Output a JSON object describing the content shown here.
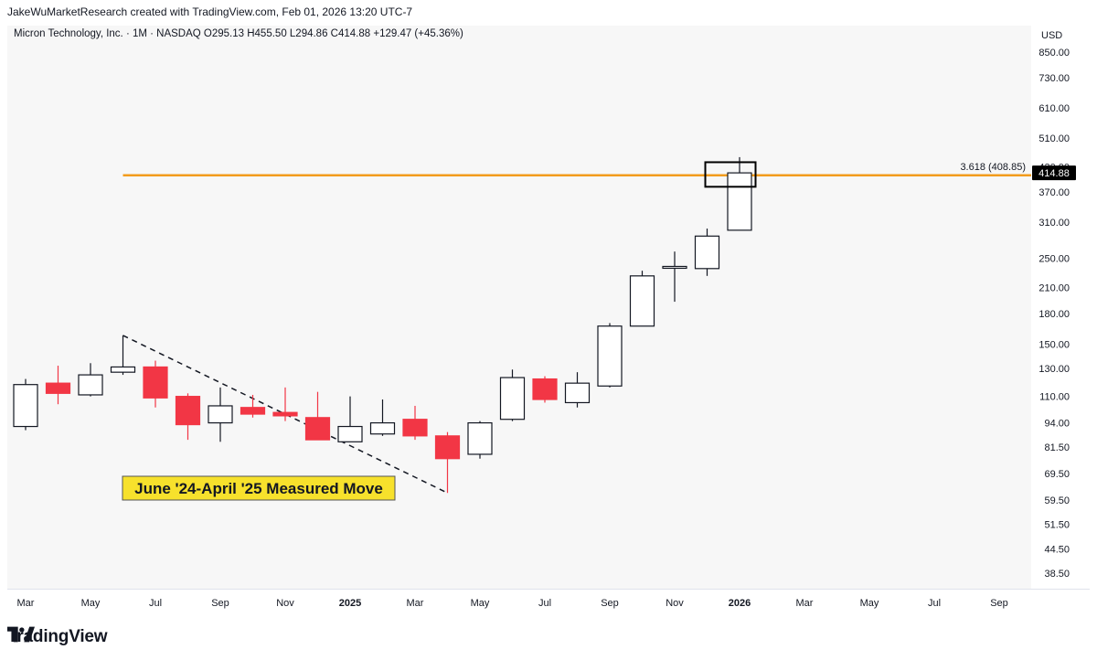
{
  "credit": "JakeWuMarketResearch created with TradingView.com, Feb 01, 2026 13:20 UTC-7",
  "legend": "Micron Technology, Inc. · 1M · NASDAQ  O295.13  H455.50  L294.86  C414.88  +129.47 (+45.36%)",
  "currency": "USD",
  "brand": "TradingView",
  "colors": {
    "up": "#ffffff",
    "down": "#f23645",
    "level": "#f29c1d",
    "text": "#131722",
    "plot_bg": "#f7f7f7",
    "label_bg": "#000000"
  },
  "chart_data": {
    "type": "candlestick",
    "title": "Micron Technology, Inc. · 1M · NASDAQ",
    "y_scale": "log",
    "ylim": [
      34,
      1000
    ],
    "y_ticks": [
      850,
      730,
      610,
      510,
      430,
      370,
      310,
      250,
      210,
      180,
      150,
      130,
      110,
      94,
      81.5,
      69.5,
      59.5,
      51.5,
      44.5,
      38.5
    ],
    "y_tick_labels": [
      "850.00",
      "730.00",
      "610.00",
      "510.00",
      "430.00",
      "370.00",
      "310.00",
      "250.00",
      "210.00",
      "180.00",
      "150.00",
      "130.00",
      "110.00",
      "94.00",
      "81.50",
      "69.50",
      "59.50",
      "51.50",
      "44.50",
      "38.50"
    ],
    "x_ticks": [
      {
        "label": "Mar",
        "month": "2024-03",
        "bold": false
      },
      {
        "label": "May",
        "month": "2024-05",
        "bold": false
      },
      {
        "label": "Jul",
        "month": "2024-07",
        "bold": false
      },
      {
        "label": "Sep",
        "month": "2024-09",
        "bold": false
      },
      {
        "label": "Nov",
        "month": "2024-11",
        "bold": false
      },
      {
        "label": "2025",
        "month": "2025-01",
        "bold": true
      },
      {
        "label": "Mar",
        "month": "2025-03",
        "bold": false
      },
      {
        "label": "May",
        "month": "2025-05",
        "bold": false
      },
      {
        "label": "Jul",
        "month": "2025-07",
        "bold": false
      },
      {
        "label": "Sep",
        "month": "2025-09",
        "bold": false
      },
      {
        "label": "Nov",
        "month": "2025-11",
        "bold": false
      },
      {
        "label": "2026",
        "month": "2026-01",
        "bold": true
      },
      {
        "label": "Mar",
        "month": "2026-03",
        "bold": false
      },
      {
        "label": "May",
        "month": "2026-05",
        "bold": false
      },
      {
        "label": "Jul",
        "month": "2026-07",
        "bold": false
      },
      {
        "label": "Sep",
        "month": "2026-09",
        "bold": false
      }
    ],
    "candles": [
      {
        "month": "2024-03",
        "open": 92,
        "high": 122,
        "low": 90,
        "close": 118
      },
      {
        "month": "2024-04",
        "open": 119,
        "high": 132,
        "low": 105,
        "close": 112
      },
      {
        "month": "2024-05",
        "open": 111,
        "high": 134,
        "low": 110,
        "close": 125
      },
      {
        "month": "2024-06",
        "open": 127,
        "high": 158,
        "low": 125,
        "close": 131
      },
      {
        "month": "2024-07",
        "open": 131,
        "high": 136,
        "low": 103,
        "close": 109
      },
      {
        "month": "2024-08",
        "open": 110,
        "high": 112,
        "low": 85,
        "close": 93
      },
      {
        "month": "2024-09",
        "open": 94,
        "high": 116,
        "low": 84,
        "close": 104
      },
      {
        "month": "2024-10",
        "open": 103,
        "high": 111,
        "low": 97,
        "close": 99
      },
      {
        "month": "2024-11",
        "open": 100,
        "high": 116,
        "low": 95,
        "close": 98
      },
      {
        "month": "2024-12",
        "open": 97,
        "high": 113,
        "low": 85,
        "close": 85
      },
      {
        "month": "2025-01",
        "open": 84,
        "high": 110,
        "low": 84,
        "close": 92
      },
      {
        "month": "2025-02",
        "open": 88,
        "high": 108,
        "low": 87,
        "close": 94
      },
      {
        "month": "2025-03",
        "open": 96,
        "high": 104,
        "low": 85,
        "close": 87
      },
      {
        "month": "2025-04",
        "open": 87,
        "high": 89,
        "low": 62,
        "close": 76
      },
      {
        "month": "2025-05",
        "open": 78,
        "high": 95,
        "low": 76,
        "close": 94
      },
      {
        "month": "2025-06",
        "open": 96,
        "high": 129,
        "low": 95,
        "close": 123
      },
      {
        "month": "2025-07",
        "open": 122,
        "high": 124,
        "low": 106,
        "close": 108
      },
      {
        "month": "2025-08",
        "open": 106,
        "high": 127,
        "low": 103,
        "close": 119
      },
      {
        "month": "2025-09",
        "open": 117,
        "high": 170,
        "low": 116,
        "close": 167
      },
      {
        "month": "2025-10",
        "open": 167,
        "high": 232,
        "low": 167,
        "close": 225
      },
      {
        "month": "2025-11",
        "open": 237,
        "high": 260,
        "low": 193,
        "close": 238
      },
      {
        "month": "2025-12",
        "open": 235,
        "high": 298,
        "low": 225,
        "close": 285
      },
      {
        "month": "2026-01",
        "open": 295.13,
        "high": 455.5,
        "low": 294.86,
        "close": 414.88
      }
    ],
    "level": {
      "label": "3.618 (408.85)",
      "value": 408.85,
      "start_month": "2024-06"
    },
    "last_price": {
      "value": 414.88,
      "label": "414.88"
    },
    "highlight_box": {
      "start_month": "2025-12",
      "end_month": "2026-02",
      "low": 382,
      "high": 442
    },
    "trend_line": {
      "start": {
        "month": "2024-06",
        "value": 158
      },
      "end": {
        "month": "2025-04",
        "value": 62
      }
    },
    "annotation": "June '24-April '25 Measured Move"
  }
}
